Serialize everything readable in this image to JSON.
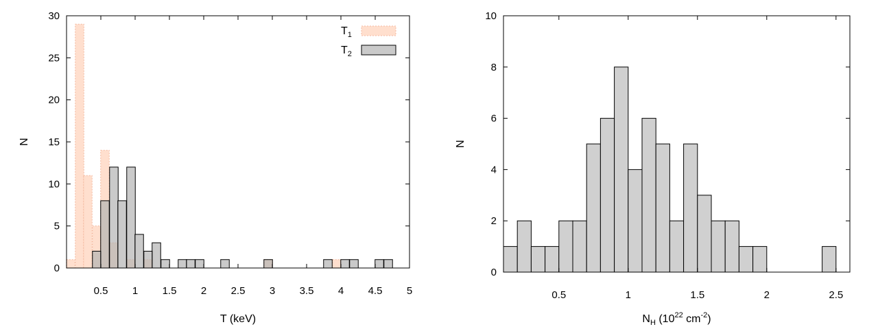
{
  "chart_data": [
    {
      "type": "bar",
      "title": "",
      "xlabel": "T (keV)",
      "ylabel": "N",
      "xlim": [
        0,
        5
      ],
      "ylim": [
        0,
        30
      ],
      "xticks": [
        "0.5",
        "1",
        "1.5",
        "2",
        "2.5",
        "3",
        "3.5",
        "4",
        "4.5",
        "5"
      ],
      "yticks": [
        "0",
        "5",
        "10",
        "15",
        "20",
        "25",
        "30"
      ],
      "bin_width": 0.125,
      "legend_position": "top-right",
      "series": [
        {
          "name": "T",
          "name_subscript": "1",
          "color": "#ffd9c6",
          "border": "#f4b9a0",
          "bins": [
            {
              "x": 0.06,
              "y": 1
            },
            {
              "x": 0.19,
              "y": 29
            },
            {
              "x": 0.31,
              "y": 11
            },
            {
              "x": 0.44,
              "y": 5
            },
            {
              "x": 0.56,
              "y": 14
            },
            {
              "x": 0.69,
              "y": 3
            },
            {
              "x": 0.94,
              "y": 1
            },
            {
              "x": 1.19,
              "y": 1
            },
            {
              "x": 2.94,
              "y": 1
            },
            {
              "x": 3.94,
              "y": 1
            }
          ]
        },
        {
          "name": "T",
          "name_subscript": "2",
          "color": "#b4b4b4",
          "border": "#000000",
          "bins": [
            {
              "x": 0.44,
              "y": 2
            },
            {
              "x": 0.56,
              "y": 8
            },
            {
              "x": 0.69,
              "y": 12
            },
            {
              "x": 0.81,
              "y": 8
            },
            {
              "x": 0.94,
              "y": 12
            },
            {
              "x": 1.06,
              "y": 4
            },
            {
              "x": 1.19,
              "y": 2
            },
            {
              "x": 1.31,
              "y": 3
            },
            {
              "x": 1.44,
              "y": 1
            },
            {
              "x": 1.69,
              "y": 1
            },
            {
              "x": 1.81,
              "y": 1
            },
            {
              "x": 1.94,
              "y": 1
            },
            {
              "x": 2.31,
              "y": 1
            },
            {
              "x": 2.94,
              "y": 1
            },
            {
              "x": 3.81,
              "y": 1
            },
            {
              "x": 4.06,
              "y": 1
            },
            {
              "x": 4.19,
              "y": 1
            },
            {
              "x": 4.56,
              "y": 1
            },
            {
              "x": 4.69,
              "y": 1
            }
          ]
        }
      ]
    },
    {
      "type": "bar",
      "title": "",
      "xlabel": "N",
      "xlabel_sub": "H",
      "xlabel_rest_prefix": " (10",
      "xlabel_sup1": "22",
      "xlabel_mid": " cm",
      "xlabel_sup2": "-2",
      "xlabel_end": ")",
      "ylabel": "N",
      "xlim": [
        0.1,
        2.6
      ],
      "ylim": [
        0,
        10
      ],
      "xticks": [
        "0.5",
        "1",
        "1.5",
        "2",
        "2.5"
      ],
      "yticks": [
        "0",
        "2",
        "4",
        "6",
        "8",
        "10"
      ],
      "bin_width": 0.1,
      "series": [
        {
          "name": "",
          "color": "#d0d0d0",
          "border": "#000000",
          "bins": [
            {
              "x": 0.15,
              "y": 1
            },
            {
              "x": 0.25,
              "y": 2
            },
            {
              "x": 0.35,
              "y": 1
            },
            {
              "x": 0.45,
              "y": 1
            },
            {
              "x": 0.55,
              "y": 2
            },
            {
              "x": 0.65,
              "y": 2
            },
            {
              "x": 0.75,
              "y": 5
            },
            {
              "x": 0.85,
              "y": 6
            },
            {
              "x": 0.95,
              "y": 8
            },
            {
              "x": 1.05,
              "y": 4
            },
            {
              "x": 1.15,
              "y": 6
            },
            {
              "x": 1.25,
              "y": 5
            },
            {
              "x": 1.35,
              "y": 2
            },
            {
              "x": 1.45,
              "y": 5
            },
            {
              "x": 1.55,
              "y": 3
            },
            {
              "x": 1.65,
              "y": 2
            },
            {
              "x": 1.75,
              "y": 2
            },
            {
              "x": 1.85,
              "y": 1
            },
            {
              "x": 1.95,
              "y": 1
            },
            {
              "x": 2.45,
              "y": 1
            }
          ]
        }
      ]
    }
  ]
}
